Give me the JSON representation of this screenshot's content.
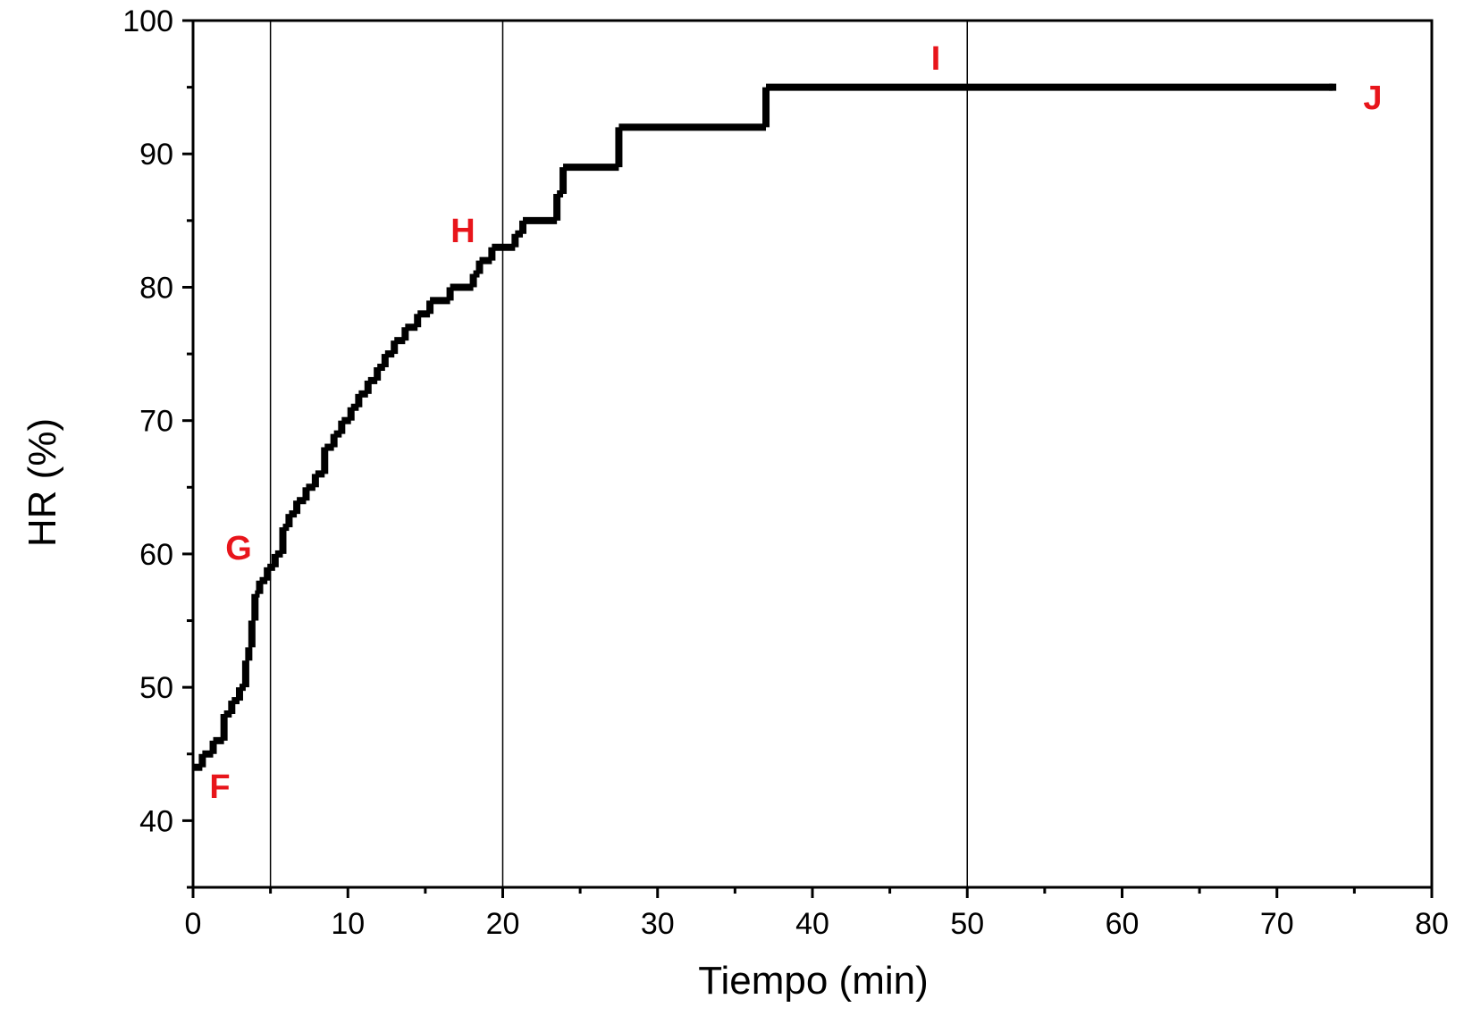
{
  "chart_data": {
    "type": "line",
    "step": "after",
    "xlabel": "Tiempo (min)",
    "ylabel": "HR (%)",
    "xlim": [
      0,
      80
    ],
    "ylim": [
      35,
      100
    ],
    "xticks": [
      0,
      10,
      20,
      30,
      40,
      50,
      60,
      70,
      80
    ],
    "yticks": [
      40,
      50,
      60,
      70,
      80,
      90,
      100
    ],
    "xminorticks": [
      5,
      15,
      25,
      35,
      45,
      55,
      65,
      75
    ],
    "yminorticks": [
      35,
      45,
      55,
      65,
      75,
      85,
      95
    ],
    "vlines": [
      5,
      20,
      50
    ],
    "annotations": [
      "F",
      "G",
      "H",
      "I",
      "J"
    ],
    "color": "#000000",
    "x": [
      0,
      0.6,
      1.3,
      2,
      2.5,
      3,
      3.4,
      3.6,
      3.8,
      4,
      4.3,
      4.8,
      5.3,
      5.8,
      6.2,
      6.7,
      7.3,
      7.9,
      8.5,
      9.1,
      9.6,
      10.2,
      10.7,
      11.3,
      11.9,
      12.4,
      13,
      13.7,
      14.5,
      15.3,
      16.6,
      18.1,
      18.5,
      19.3,
      20.8,
      21.3,
      23.5,
      23.9,
      27.5,
      37,
      73.6
    ],
    "values": [
      44,
      45,
      46,
      48,
      49,
      50,
      52,
      53,
      55,
      57,
      58,
      59,
      60,
      62,
      63,
      64,
      65,
      66,
      68,
      69,
      70,
      71,
      72,
      73,
      74,
      75,
      76,
      77,
      78,
      79,
      80,
      81,
      82,
      83,
      84,
      85,
      87,
      89,
      92,
      95,
      95
    ]
  }
}
